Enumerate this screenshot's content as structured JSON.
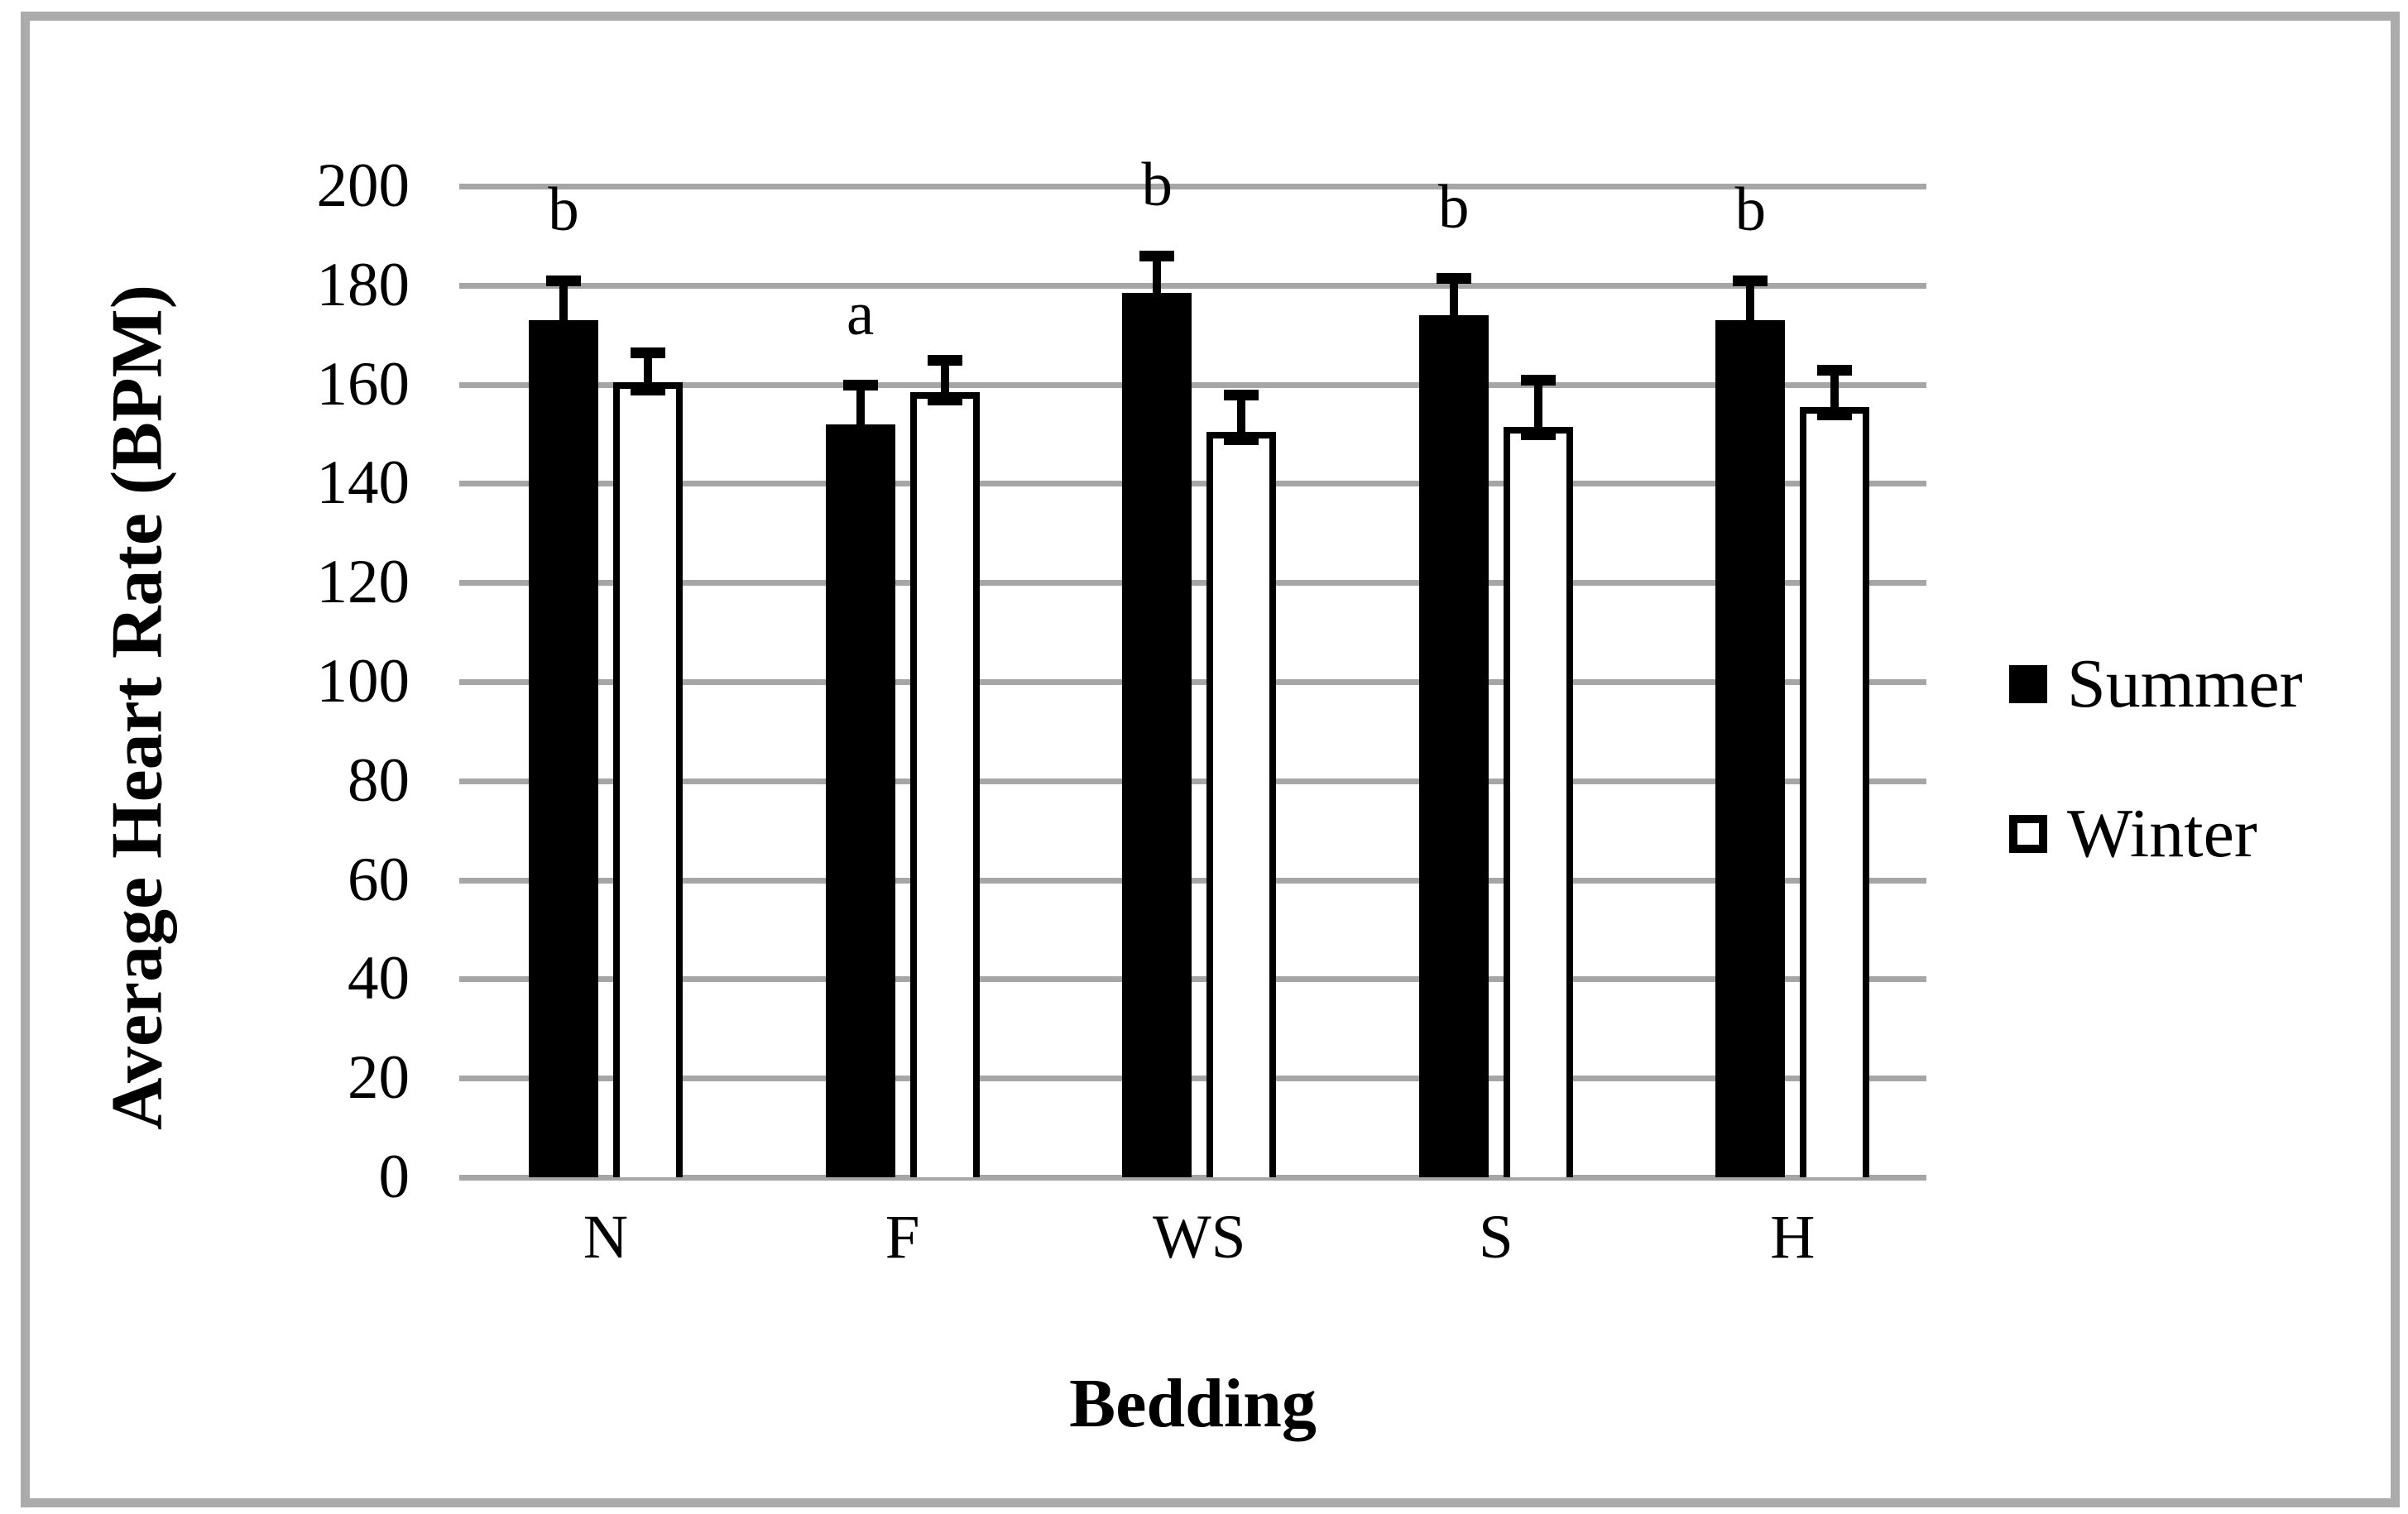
{
  "figure": {
    "y_axis_title": "Average Heart Rate (BPM)",
    "x_axis_title": "Bedding"
  },
  "legend": {
    "entries": [
      {
        "label": "Summer",
        "fill": "#000000",
        "outline": "#000000"
      },
      {
        "label": "Winter",
        "fill": "#ffffff",
        "outline": "#000000"
      }
    ],
    "position": "right"
  },
  "chart_data": {
    "type": "bar",
    "categories": [
      "N",
      "F",
      "WS",
      "S",
      "H"
    ],
    "series": [
      {
        "name": "Summer",
        "fill": "#000000",
        "values": [
          173,
          152,
          178.5,
          174,
          173
        ],
        "error_plus": [
          8,
          8,
          7.5,
          7.5,
          8
        ]
      },
      {
        "name": "Winter",
        "fill": "#ffffff",
        "values": [
          160.5,
          158.5,
          150.5,
          151.5,
          155.5
        ],
        "error_plus": [
          6,
          6.5,
          7.5,
          9.5,
          7.5
        ]
      }
    ],
    "significance_letters": {
      "attached_to_series": "Summer",
      "labels": [
        "b",
        "a",
        "b",
        "b",
        "b"
      ]
    },
    "title": "",
    "xlabel": "Bedding",
    "ylabel": "Average Heart Rate (BPM)",
    "ylim": [
      0,
      200
    ],
    "yticks": [
      0,
      20,
      40,
      60,
      80,
      100,
      120,
      140,
      160,
      180,
      200
    ],
    "grid": "horizontal",
    "legend_position": "right"
  },
  "colors": {
    "bar_fill_summer": "#000000",
    "bar_fill_winter": "#ffffff",
    "bar_outline": "#000000",
    "gridline": "#A6A6A6",
    "frame_border": "#ABABAB",
    "background": "#FFFFFF",
    "text": "#000000"
  }
}
